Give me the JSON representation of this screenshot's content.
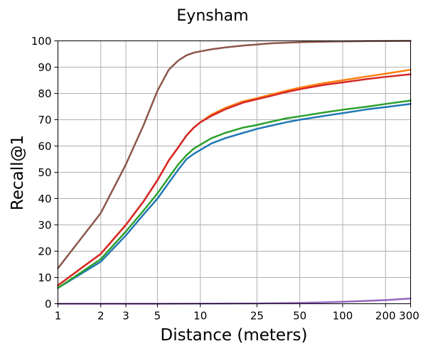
{
  "chart_data": {
    "type": "line",
    "title": "Eynsham",
    "xlabel": "Distance (meters)",
    "ylabel": "Recall@1",
    "xscale": "log",
    "xlim": [
      1,
      300
    ],
    "ylim": [
      0,
      100
    ],
    "grid": true,
    "xticks": [
      1,
      2,
      3,
      5,
      10,
      25,
      50,
      100,
      200,
      300
    ],
    "xtick_labels": [
      "1",
      "2",
      "3",
      "5",
      "10",
      "25",
      "50",
      "100",
      "200",
      "300"
    ],
    "yticks": [
      0,
      10,
      20,
      30,
      40,
      50,
      60,
      70,
      80,
      90,
      100
    ],
    "ytick_labels": [
      "0",
      "10",
      "20",
      "30",
      "40",
      "50",
      "60",
      "70",
      "80",
      "90",
      "100"
    ],
    "series": [
      {
        "name": "blue",
        "color": "#1f77b4",
        "x": [
          1,
          2,
          3,
          4,
          5,
          6,
          7,
          8,
          9,
          10,
          12,
          15,
          20,
          25,
          30,
          40,
          50,
          75,
          100,
          150,
          200,
          300
        ],
        "y": [
          6,
          16,
          26,
          34,
          40,
          46,
          51,
          55,
          57,
          58.5,
          61,
          63,
          65,
          66.5,
          67.5,
          69,
          70,
          71.5,
          72.5,
          74,
          74.8,
          76
        ]
      },
      {
        "name": "green",
        "color": "#2ca02c",
        "x": [
          1,
          2,
          3,
          4,
          5,
          6,
          7,
          8,
          9,
          10,
          12,
          15,
          20,
          25,
          30,
          40,
          50,
          75,
          100,
          150,
          200,
          300
        ],
        "y": [
          6,
          17,
          27.5,
          35.5,
          42,
          48,
          53,
          56.5,
          59,
          60.5,
          63,
          65,
          67,
          68,
          69,
          70.5,
          71.3,
          72.8,
          73.8,
          75,
          76,
          77.3
        ]
      },
      {
        "name": "orange",
        "color": "#ff7f0e",
        "x": [
          1,
          2,
          3,
          4,
          5,
          6,
          7,
          8,
          9,
          10,
          12,
          15,
          20,
          25,
          30,
          40,
          50,
          75,
          100,
          150,
          200,
          300
        ],
        "y": [
          7,
          19,
          30,
          39,
          47,
          54.5,
          59.5,
          64,
          67,
          69,
          72,
          74.5,
          77,
          78.2,
          79.3,
          81,
          82.2,
          84,
          85,
          86.5,
          87.5,
          89
        ]
      },
      {
        "name": "red",
        "color": "#d62728",
        "x": [
          1,
          2,
          3,
          4,
          5,
          6,
          7,
          8,
          9,
          10,
          12,
          15,
          20,
          25,
          30,
          40,
          50,
          75,
          100,
          150,
          200,
          300
        ],
        "y": [
          7,
          19,
          30,
          39,
          47,
          54.5,
          59.5,
          64,
          67,
          69,
          71.5,
          74,
          76.5,
          77.8,
          78.8,
          80.5,
          81.6,
          83.3,
          84.2,
          85.5,
          86.3,
          87.3
        ]
      },
      {
        "name": "brown",
        "color": "#8c564b",
        "x": [
          1,
          2,
          3,
          4,
          5,
          6,
          7,
          8,
          9,
          10,
          12,
          15,
          20,
          25,
          30,
          40,
          50,
          75,
          100,
          150,
          200,
          300
        ],
        "y": [
          13.5,
          34.5,
          53,
          68,
          81,
          89,
          92.5,
          94.5,
          95.5,
          96,
          96.8,
          97.5,
          98.2,
          98.6,
          99,
          99.3,
          99.5,
          99.7,
          99.8,
          99.9,
          99.95,
          100
        ]
      },
      {
        "name": "purple",
        "color": "#9467bd",
        "x": [
          1,
          2,
          3,
          5,
          10,
          25,
          50,
          75,
          100,
          150,
          200,
          300
        ],
        "y": [
          0,
          0,
          0,
          0,
          0.05,
          0.15,
          0.35,
          0.55,
          0.75,
          1.1,
          1.4,
          2
        ]
      }
    ]
  }
}
